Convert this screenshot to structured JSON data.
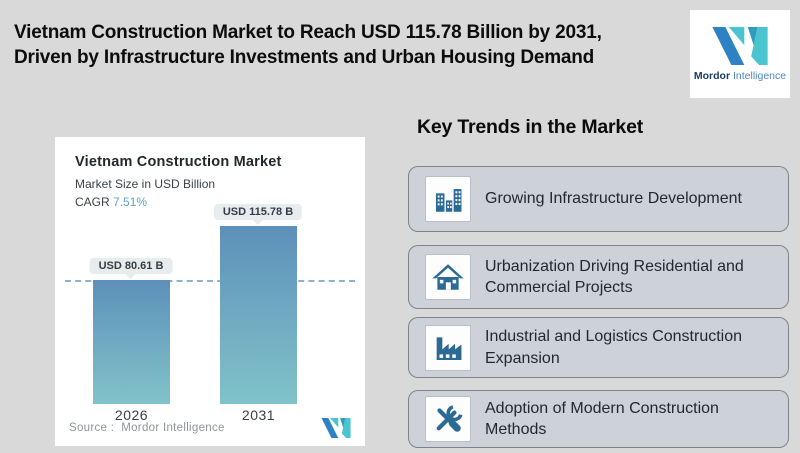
{
  "header": {
    "title_line1": "Vietnam Construction Market to Reach USD 115.78 Billion by 2031,",
    "title_line2": "Driven by Infrastructure Investments and Urban Housing Demand",
    "logo": {
      "brand_bold": "Mordor",
      "brand_light": "Intelligence"
    }
  },
  "chart_card": {
    "title": "Vietnam Construction Market",
    "subtitle": "Market Size in USD Billion",
    "cagr_label": "CAGR",
    "cagr_value": "7.51%",
    "source_label": "Source :",
    "source_value": "Mordor Intelligence"
  },
  "chart_data": {
    "type": "bar",
    "title": "Vietnam Construction Market",
    "subtitle": "Market Size in USD Billion",
    "cagr": "7.51%",
    "categories": [
      "2026",
      "2031"
    ],
    "values": [
      80.61,
      115.78
    ],
    "value_labels": [
      "USD 80.61 B",
      "USD 115.78 B"
    ],
    "unit": "USD Billion",
    "ylim": [
      0,
      115.78
    ],
    "grid": false,
    "dashed_reference_line_at": 80.61,
    "bar_gradient_top": "#5d90ba",
    "bar_gradient_bottom": "#80c3c9",
    "dash_color": "#8cb2d3"
  },
  "trends": {
    "heading": "Key Trends in the Market",
    "items": [
      {
        "icon": "buildings-icon",
        "label": "Growing Infrastructure Development"
      },
      {
        "icon": "house-icon",
        "label": "Urbanization Driving Residential and Commercial Projects"
      },
      {
        "icon": "factory-icon",
        "label": "Industrial and Logistics Construction Expansion"
      },
      {
        "icon": "tools-icon",
        "label": "Adoption of Modern Construction Methods"
      }
    ]
  },
  "colors": {
    "page_bg": "#d9d9d9",
    "card_bg": "#ffffff",
    "trend_card_bg": "#cdd2d9",
    "icon_blue": "#2b6a94",
    "cagr_blue": "#5da3cd",
    "brand_blue": "#2e82c4",
    "brand_teal": "#4ac4cf"
  }
}
